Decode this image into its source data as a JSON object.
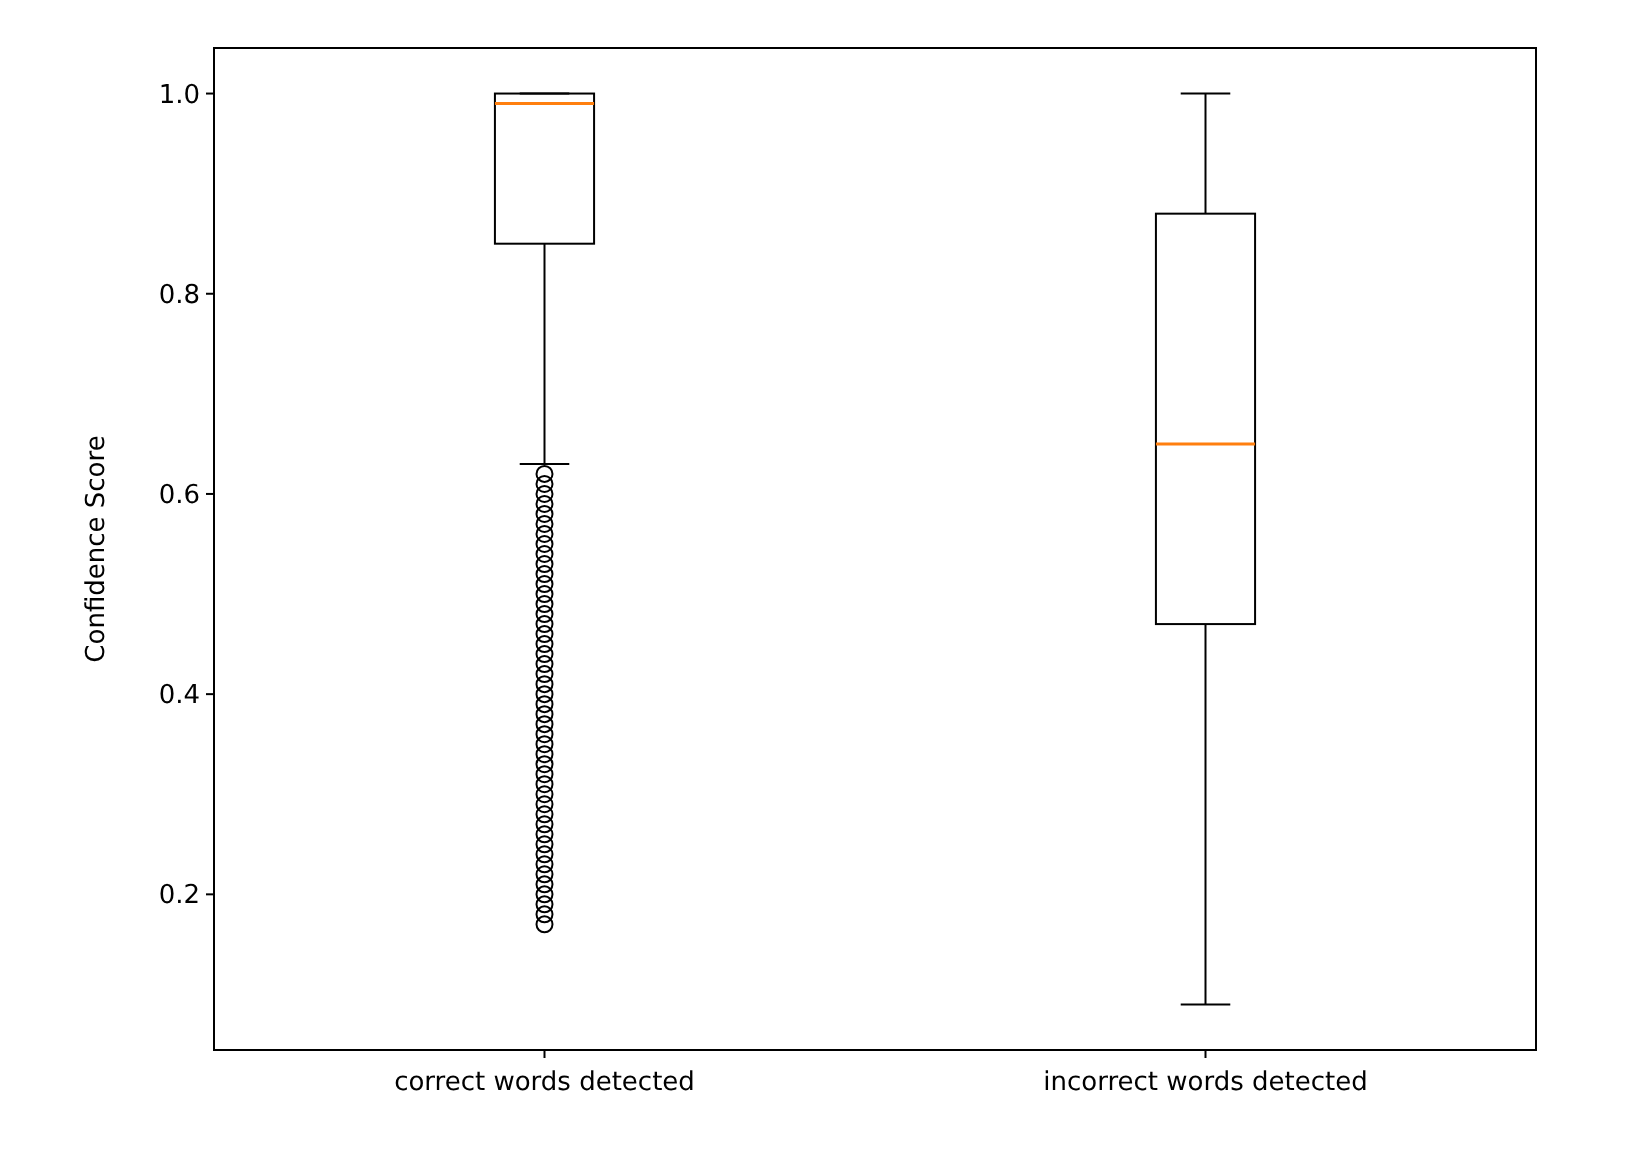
{
  "chart_data": {
    "type": "box",
    "ylabel": "Confidence Score",
    "categories": [
      "correct words detected",
      "incorrect words detected"
    ],
    "boxes": [
      {
        "low": 0.63,
        "q1": 0.85,
        "median": 0.99,
        "q3": 1.0,
        "high": 1.0,
        "outliers": [
          0.17,
          0.18,
          0.19,
          0.2,
          0.21,
          0.22,
          0.23,
          0.24,
          0.25,
          0.26,
          0.27,
          0.28,
          0.29,
          0.3,
          0.31,
          0.32,
          0.33,
          0.34,
          0.35,
          0.36,
          0.37,
          0.38,
          0.39,
          0.4,
          0.41,
          0.42,
          0.43,
          0.44,
          0.45,
          0.46,
          0.47,
          0.48,
          0.49,
          0.5,
          0.51,
          0.52,
          0.53,
          0.54,
          0.55,
          0.56,
          0.57,
          0.58,
          0.59,
          0.6,
          0.61,
          0.62
        ]
      },
      {
        "low": 0.09,
        "q1": 0.47,
        "median": 0.65,
        "q3": 0.88,
        "high": 1.0
      }
    ],
    "ylim": [
      0.0445,
      1.0455
    ],
    "yticks": [
      {
        "value": 0.2,
        "label": "0.2"
      },
      {
        "value": 0.4,
        "label": "0.4"
      },
      {
        "value": 0.6,
        "label": "0.6"
      },
      {
        "value": 0.8,
        "label": "0.8"
      },
      {
        "value": 1.0,
        "label": "1.0"
      }
    ],
    "grid": false
  }
}
